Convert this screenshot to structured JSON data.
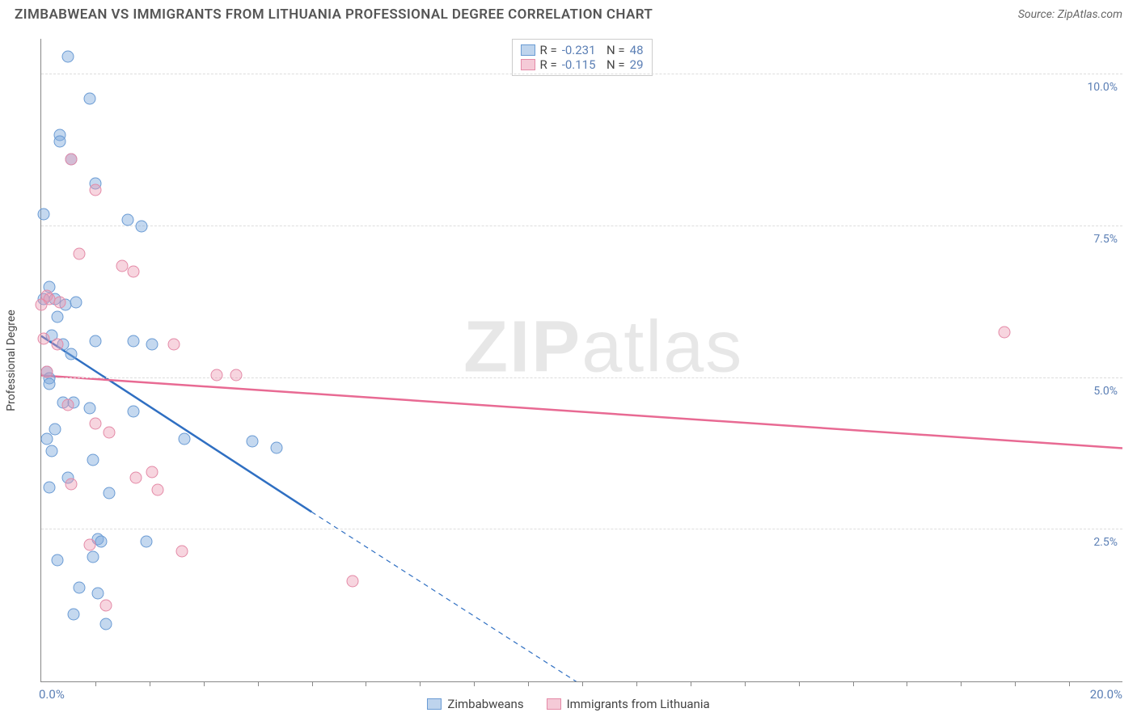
{
  "title": "ZIMBABWEAN VS IMMIGRANTS FROM LITHUANIA PROFESSIONAL DEGREE CORRELATION CHART",
  "source_label": "Source: ZipAtlas.com",
  "watermark": {
    "bold": "ZIP",
    "rest": "atlas"
  },
  "y_axis": {
    "title": "Professional Degree",
    "min": 0.0,
    "max": 10.6,
    "ticks": [
      {
        "v": 2.5,
        "label": "2.5%"
      },
      {
        "v": 5.0,
        "label": "5.0%"
      },
      {
        "v": 7.5,
        "label": "7.5%"
      },
      {
        "v": 10.0,
        "label": "10.0%"
      }
    ]
  },
  "x_axis": {
    "min": 0.0,
    "max": 20.0,
    "minor_step": 1.0,
    "corner_min_label": "0.0%",
    "corner_max_label": "20.0%"
  },
  "series": [
    {
      "key": "zimbabweans",
      "label": "Zimbabweans",
      "css": "series-a",
      "swatch": "sw-a",
      "color": "#2f6fc2",
      "r": "-0.231",
      "n": "48",
      "trend": {
        "x1": 0.0,
        "y1": 5.7,
        "x2": 5.0,
        "y2": 2.8,
        "extrapolate_to_x": 9.9
      },
      "points": [
        [
          0.5,
          10.3
        ],
        [
          0.9,
          9.6
        ],
        [
          0.35,
          9.0
        ],
        [
          0.35,
          8.9
        ],
        [
          0.55,
          8.6
        ],
        [
          1.0,
          8.2
        ],
        [
          0.05,
          7.7
        ],
        [
          1.6,
          7.6
        ],
        [
          1.85,
          7.5
        ],
        [
          0.15,
          6.5
        ],
        [
          0.05,
          6.3
        ],
        [
          0.25,
          6.3
        ],
        [
          0.45,
          6.2
        ],
        [
          0.3,
          6.0
        ],
        [
          0.2,
          5.7
        ],
        [
          1.0,
          5.6
        ],
        [
          1.7,
          5.6
        ],
        [
          2.05,
          5.55
        ],
        [
          0.1,
          5.1
        ],
        [
          0.15,
          5.0
        ],
        [
          0.15,
          4.9
        ],
        [
          0.4,
          4.6
        ],
        [
          0.6,
          4.6
        ],
        [
          0.1,
          4.0
        ],
        [
          0.9,
          4.5
        ],
        [
          1.7,
          4.45
        ],
        [
          2.65,
          4.0
        ],
        [
          3.9,
          3.95
        ],
        [
          4.35,
          3.85
        ],
        [
          0.2,
          3.8
        ],
        [
          0.95,
          3.65
        ],
        [
          0.15,
          3.2
        ],
        [
          1.25,
          3.1
        ],
        [
          1.05,
          2.35
        ],
        [
          1.1,
          2.3
        ],
        [
          1.95,
          2.3
        ],
        [
          0.95,
          2.05
        ],
        [
          0.7,
          1.55
        ],
        [
          1.05,
          1.45
        ],
        [
          0.6,
          1.1
        ],
        [
          1.2,
          0.95
        ],
        [
          0.65,
          6.25
        ],
        [
          0.4,
          5.55
        ],
        [
          0.55,
          5.4
        ],
        [
          0.25,
          4.15
        ],
        [
          0.5,
          3.35
        ],
        [
          0.3,
          2.0
        ]
      ]
    },
    {
      "key": "lithuania",
      "label": "Immigrants from Lithuania",
      "css": "series-b",
      "swatch": "sw-b",
      "color": "#e86a93",
      "r": "-0.115",
      "n": "29",
      "trend": {
        "x1": 0.0,
        "y1": 5.05,
        "x2": 20.0,
        "y2": 3.85
      },
      "points": [
        [
          0.55,
          8.6
        ],
        [
          1.0,
          8.1
        ],
        [
          0.7,
          7.05
        ],
        [
          1.5,
          6.85
        ],
        [
          1.7,
          6.75
        ],
        [
          0.1,
          6.35
        ],
        [
          0.15,
          6.3
        ],
        [
          0.35,
          6.25
        ],
        [
          0.0,
          6.2
        ],
        [
          0.05,
          5.65
        ],
        [
          0.3,
          5.55
        ],
        [
          2.45,
          5.55
        ],
        [
          17.8,
          5.75
        ],
        [
          0.1,
          5.1
        ],
        [
          3.25,
          5.05
        ],
        [
          3.6,
          5.05
        ],
        [
          0.5,
          4.55
        ],
        [
          1.0,
          4.25
        ],
        [
          1.25,
          4.1
        ],
        [
          2.05,
          3.45
        ],
        [
          0.55,
          3.25
        ],
        [
          1.75,
          3.35
        ],
        [
          2.15,
          3.15
        ],
        [
          0.9,
          2.25
        ],
        [
          2.6,
          2.15
        ],
        [
          5.75,
          1.65
        ],
        [
          1.2,
          1.25
        ]
      ]
    }
  ],
  "colors": {
    "axis": "#888888",
    "grid": "#dddddd",
    "tick_label": "#5b7fb5",
    "title": "#555555"
  }
}
